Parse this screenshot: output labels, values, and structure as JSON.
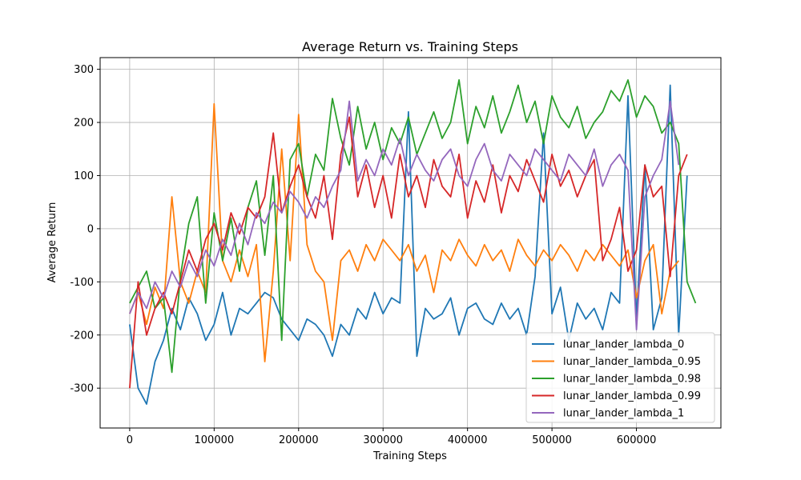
{
  "chart_data": {
    "type": "line",
    "title": "Average Return vs. Training Steps",
    "xlabel": "Training Steps",
    "ylabel": "Average Return",
    "xlim": [
      -35000,
      700000
    ],
    "ylim": [
      -375,
      322
    ],
    "xticks": [
      0,
      100000,
      200000,
      300000,
      400000,
      500000,
      600000
    ],
    "yticks": [
      -300,
      -200,
      -100,
      0,
      100,
      200,
      300
    ],
    "grid": true,
    "legend_position": "bottom-right",
    "series": [
      {
        "name": "lunar_lander_lambda_0",
        "color": "#1f77b4",
        "x": [
          0,
          10000,
          20000,
          30000,
          40000,
          50000,
          60000,
          70000,
          80000,
          90000,
          100000,
          110000,
          120000,
          130000,
          140000,
          150000,
          160000,
          170000,
          180000,
          190000,
          200000,
          210000,
          220000,
          230000,
          240000,
          250000,
          260000,
          270000,
          280000,
          290000,
          300000,
          310000,
          320000,
          330000,
          340000,
          350000,
          360000,
          370000,
          380000,
          390000,
          400000,
          410000,
          420000,
          430000,
          440000,
          450000,
          460000,
          470000,
          480000,
          490000,
          500000,
          510000,
          520000,
          530000,
          540000,
          550000,
          560000,
          570000,
          580000,
          590000,
          600000,
          610000,
          620000,
          630000,
          640000,
          650000,
          660000
        ],
        "y": [
          -180,
          -300,
          -330,
          -250,
          -210,
          -150,
          -190,
          -130,
          -160,
          -210,
          -180,
          -120,
          -200,
          -150,
          -160,
          -140,
          -120,
          -130,
          -170,
          -190,
          -210,
          -170,
          -180,
          -200,
          -240,
          -180,
          -200,
          -150,
          -170,
          -120,
          -160,
          -130,
          -140,
          220,
          -240,
          -150,
          -170,
          -160,
          -130,
          -200,
          -150,
          -140,
          -170,
          -180,
          -140,
          -170,
          -150,
          -200,
          -90,
          180,
          -160,
          -110,
          -210,
          -140,
          -170,
          -150,
          -190,
          -120,
          -140,
          250,
          -170,
          120,
          -190,
          -130,
          270,
          -200,
          100
        ]
      },
      {
        "name": "lunar_lander_lambda_0.95",
        "color": "#ff7f0e",
        "x": [
          0,
          10000,
          20000,
          30000,
          40000,
          50000,
          60000,
          70000,
          80000,
          90000,
          100000,
          110000,
          120000,
          130000,
          140000,
          150000,
          160000,
          170000,
          180000,
          190000,
          200000,
          210000,
          220000,
          230000,
          240000,
          250000,
          260000,
          270000,
          280000,
          290000,
          300000,
          310000,
          320000,
          330000,
          340000,
          350000,
          360000,
          370000,
          380000,
          390000,
          400000,
          410000,
          420000,
          430000,
          440000,
          450000,
          460000,
          470000,
          480000,
          490000,
          500000,
          510000,
          520000,
          530000,
          540000,
          550000,
          560000,
          570000,
          580000,
          590000,
          600000,
          610000,
          620000,
          630000,
          640000,
          650000
        ],
        "y": [
          -160,
          -120,
          -180,
          -110,
          -150,
          60,
          -100,
          -140,
          -80,
          -120,
          235,
          -60,
          -100,
          -40,
          -90,
          -30,
          -250,
          -80,
          150,
          -60,
          215,
          -30,
          -80,
          -100,
          -210,
          -60,
          -40,
          -80,
          -30,
          -60,
          -20,
          -40,
          -60,
          -30,
          -80,
          -50,
          -120,
          -40,
          -60,
          -20,
          -50,
          -70,
          -30,
          -60,
          -40,
          -80,
          -20,
          -50,
          -70,
          -40,
          -60,
          -30,
          -50,
          -80,
          -40,
          -60,
          -30,
          -50,
          -70,
          -40,
          -130,
          -60,
          -30,
          -160,
          -80,
          -60
        ]
      },
      {
        "name": "lunar_lander_lambda_0.98",
        "color": "#2ca02c",
        "x": [
          0,
          10000,
          20000,
          30000,
          40000,
          50000,
          60000,
          70000,
          80000,
          90000,
          100000,
          110000,
          120000,
          130000,
          140000,
          150000,
          160000,
          170000,
          180000,
          190000,
          200000,
          210000,
          220000,
          230000,
          240000,
          250000,
          260000,
          270000,
          280000,
          290000,
          300000,
          310000,
          320000,
          330000,
          340000,
          350000,
          360000,
          370000,
          380000,
          390000,
          400000,
          410000,
          420000,
          430000,
          440000,
          450000,
          460000,
          470000,
          480000,
          490000,
          500000,
          510000,
          520000,
          530000,
          540000,
          550000,
          560000,
          570000,
          580000,
          590000,
          600000,
          610000,
          620000,
          630000,
          640000,
          650000,
          660000,
          670000
        ],
        "y": [
          -140,
          -110,
          -80,
          -150,
          -130,
          -270,
          -90,
          10,
          60,
          -140,
          30,
          -60,
          20,
          -80,
          40,
          90,
          -50,
          100,
          -210,
          130,
          160,
          60,
          140,
          110,
          245,
          170,
          120,
          230,
          150,
          200,
          130,
          190,
          160,
          210,
          140,
          180,
          220,
          170,
          200,
          280,
          160,
          230,
          190,
          250,
          180,
          220,
          270,
          200,
          240,
          160,
          250,
          210,
          190,
          230,
          170,
          200,
          220,
          260,
          240,
          280,
          210,
          250,
          230,
          180,
          200,
          160,
          -100,
          -140
        ]
      },
      {
        "name": "lunar_lander_lambda_0.99",
        "color": "#d62728",
        "x": [
          0,
          10000,
          20000,
          30000,
          40000,
          50000,
          60000,
          70000,
          80000,
          90000,
          100000,
          110000,
          120000,
          130000,
          140000,
          150000,
          160000,
          170000,
          180000,
          190000,
          200000,
          210000,
          220000,
          230000,
          240000,
          250000,
          260000,
          270000,
          280000,
          290000,
          300000,
          310000,
          320000,
          330000,
          340000,
          350000,
          360000,
          370000,
          380000,
          390000,
          400000,
          410000,
          420000,
          430000,
          440000,
          450000,
          460000,
          470000,
          480000,
          490000,
          500000,
          510000,
          520000,
          530000,
          540000,
          550000,
          560000,
          570000,
          580000,
          590000,
          600000,
          610000,
          620000,
          630000,
          640000,
          650000,
          660000
        ],
        "y": [
          -300,
          -100,
          -200,
          -150,
          -120,
          -160,
          -100,
          -40,
          -80,
          -20,
          10,
          -40,
          30,
          -10,
          40,
          20,
          60,
          180,
          30,
          80,
          120,
          60,
          20,
          100,
          -20,
          140,
          210,
          60,
          120,
          40,
          100,
          20,
          140,
          60,
          100,
          40,
          130,
          80,
          60,
          140,
          20,
          90,
          50,
          120,
          30,
          100,
          70,
          130,
          90,
          50,
          140,
          80,
          110,
          60,
          100,
          130,
          -60,
          -20,
          40,
          -80,
          -40,
          120,
          60,
          80,
          -90,
          100,
          140
        ]
      },
      {
        "name": "lunar_lander_lambda_1",
        "color": "#9467bd",
        "x": [
          0,
          10000,
          20000,
          30000,
          40000,
          50000,
          60000,
          70000,
          80000,
          90000,
          100000,
          110000,
          120000,
          130000,
          140000,
          150000,
          160000,
          170000,
          180000,
          190000,
          200000,
          210000,
          220000,
          230000,
          240000,
          250000,
          260000,
          270000,
          280000,
          290000,
          300000,
          310000,
          320000,
          330000,
          340000,
          350000,
          360000,
          370000,
          380000,
          390000,
          400000,
          410000,
          420000,
          430000,
          440000,
          450000,
          460000,
          470000,
          480000,
          490000,
          500000,
          510000,
          520000,
          530000,
          540000,
          550000,
          560000,
          570000,
          580000,
          590000,
          600000,
          610000,
          620000,
          630000,
          640000,
          650000
        ],
        "y": [
          -160,
          -120,
          -150,
          -100,
          -130,
          -80,
          -110,
          -60,
          -90,
          -40,
          -70,
          -20,
          -50,
          10,
          -30,
          30,
          10,
          50,
          30,
          70,
          50,
          20,
          60,
          40,
          80,
          110,
          240,
          90,
          130,
          100,
          150,
          120,
          170,
          100,
          140,
          110,
          90,
          130,
          150,
          100,
          80,
          130,
          160,
          110,
          90,
          140,
          120,
          100,
          150,
          130,
          110,
          90,
          140,
          120,
          100,
          150,
          80,
          120,
          140,
          110,
          -190,
          60,
          100,
          130,
          240,
          120
        ]
      }
    ]
  }
}
